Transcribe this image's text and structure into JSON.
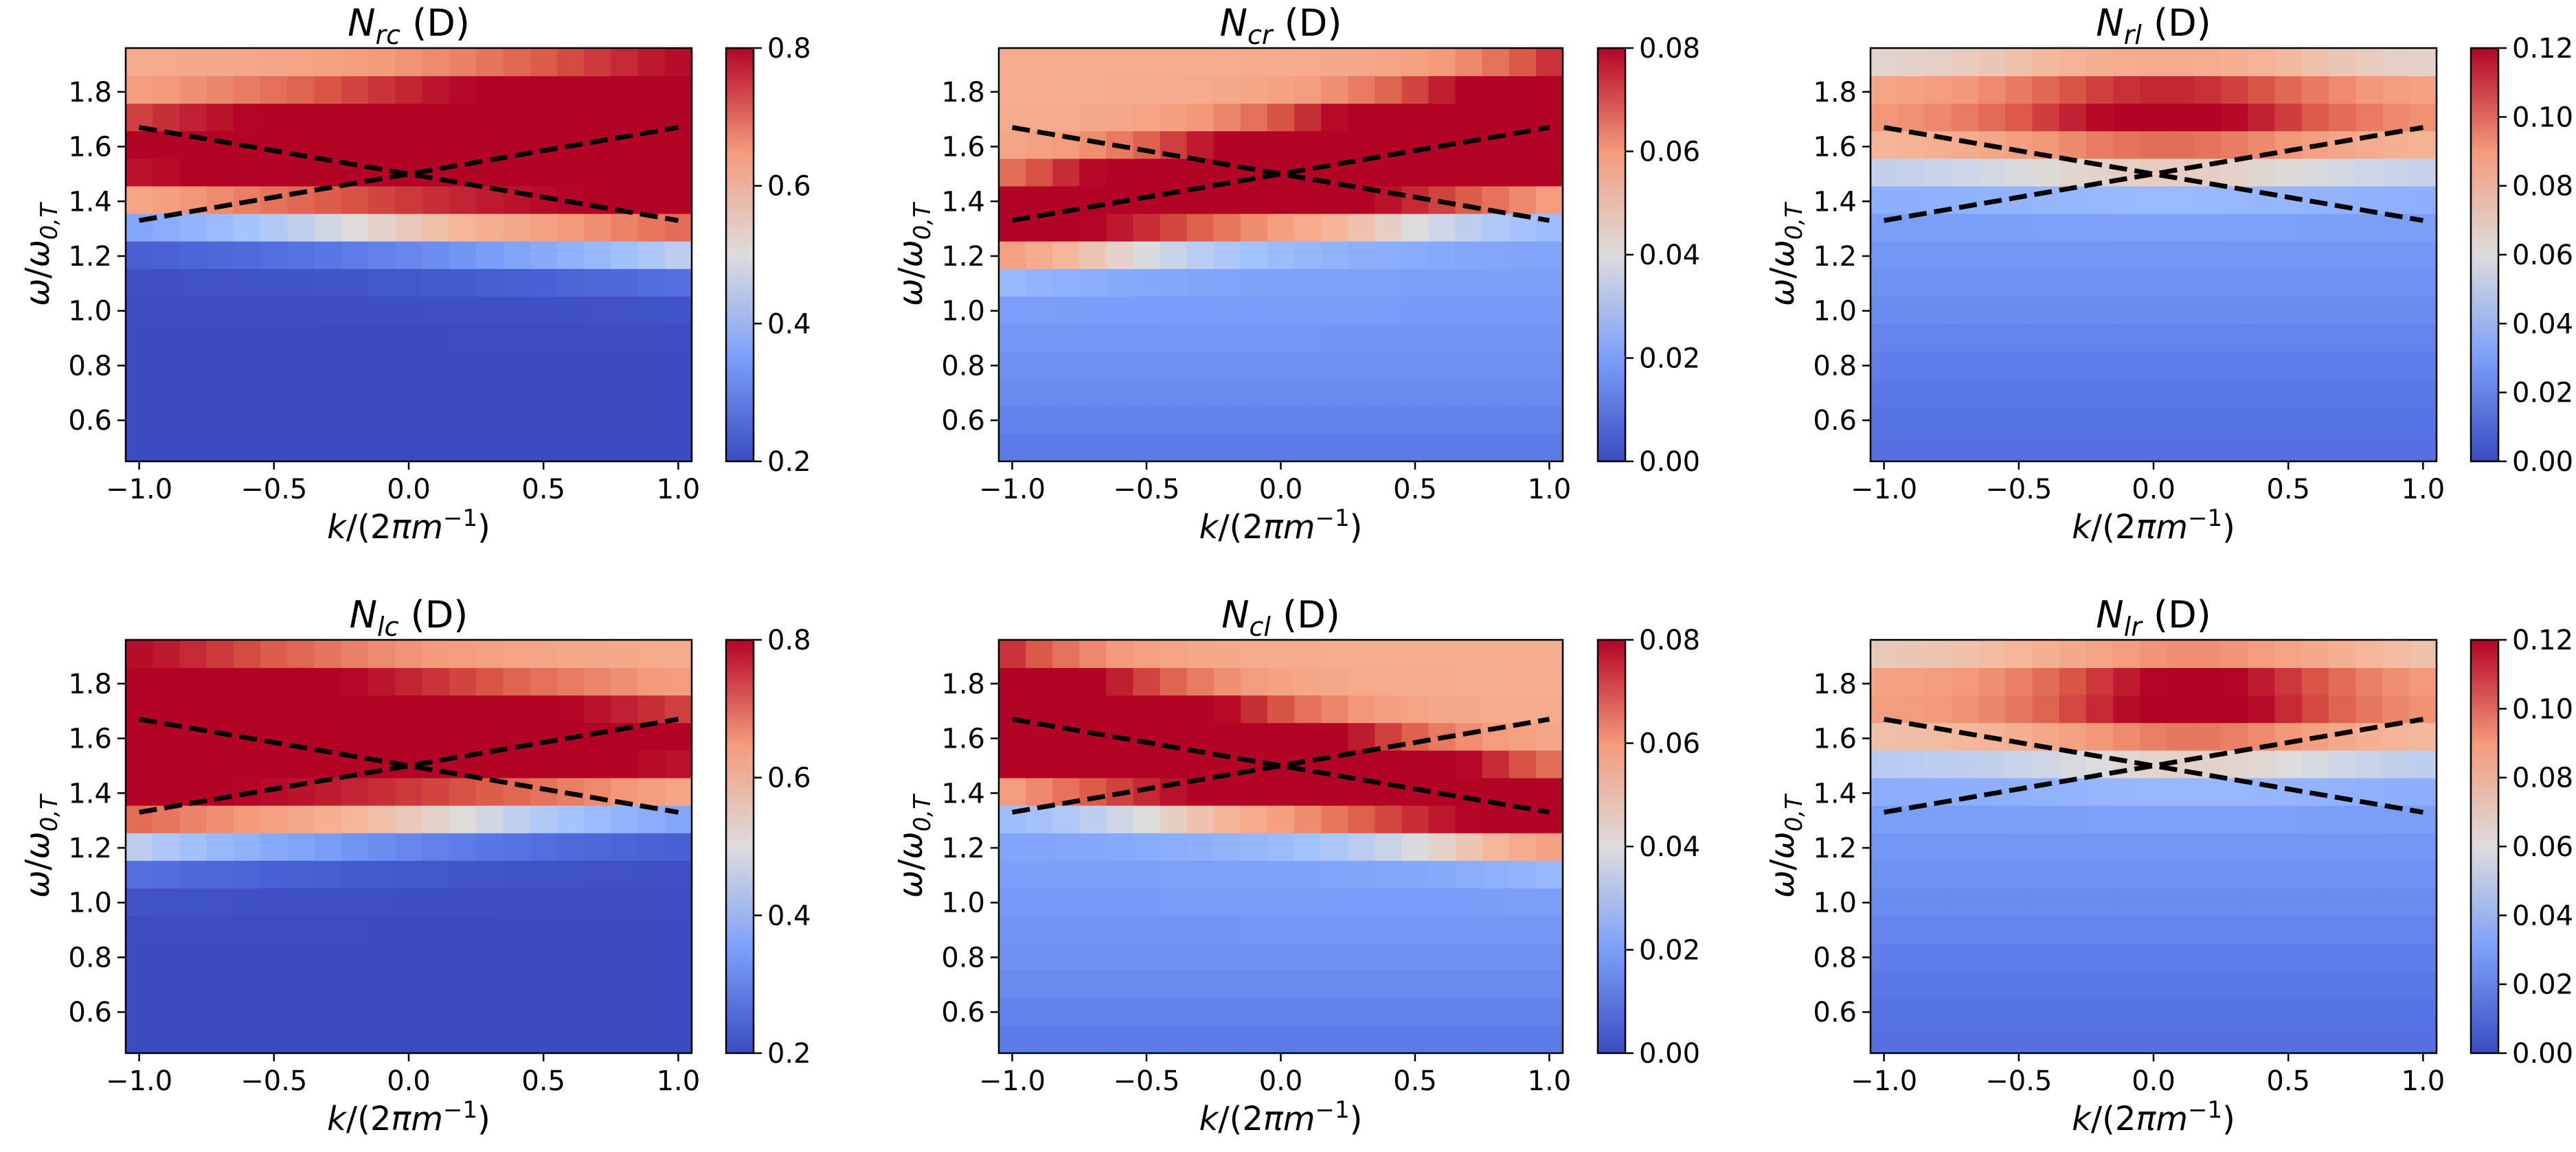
{
  "chart_data": [
    {
      "type": "heatmap",
      "title_symbol": "N",
      "title_sub": "rc",
      "title_suffix": " (D)",
      "xlabel": "k/(2πm⁻¹)",
      "ylabel": "ω/ω₀,T",
      "xlim": [
        -1.05,
        1.05
      ],
      "ylim": [
        0.45,
        1.96
      ],
      "xticks": [
        "−1.0",
        "−0.5",
        "0.0",
        "0.5",
        "1.0"
      ],
      "xtick_values": [
        -1.0,
        -0.5,
        0.0,
        0.5,
        1.0
      ],
      "yticks": [
        "0.6",
        "0.8",
        "1.0",
        "1.2",
        "1.4",
        "1.6",
        "1.8"
      ],
      "ytick_values": [
        0.6,
        0.8,
        1.0,
        1.2,
        1.4,
        1.6,
        1.8
      ],
      "colorbar": {
        "colormap": "coolwarm",
        "vmin": 0.2,
        "vmax": 0.8,
        "ticks": [
          "0.2",
          "0.4",
          "0.6",
          "0.8"
        ],
        "tick_values": [
          0.2,
          0.4,
          0.6,
          0.8
        ]
      },
      "grid": {
        "nx": 21,
        "ny": 15,
        "pattern": "rc"
      },
      "dashed_lines": [
        {
          "x": [
            -1.0,
            1.0
          ],
          "y": [
            1.67,
            1.33
          ]
        },
        {
          "x": [
            -1.0,
            1.0
          ],
          "y": [
            1.33,
            1.67
          ]
        }
      ]
    },
    {
      "type": "heatmap",
      "title_symbol": "N",
      "title_sub": "cr",
      "title_suffix": " (D)",
      "xlabel": "k/(2πm⁻¹)",
      "ylabel": "ω/ω₀,T",
      "xlim": [
        -1.05,
        1.05
      ],
      "ylim": [
        0.45,
        1.96
      ],
      "xticks": [
        "−1.0",
        "−0.5",
        "0.0",
        "0.5",
        "1.0"
      ],
      "xtick_values": [
        -1.0,
        -0.5,
        0.0,
        0.5,
        1.0
      ],
      "yticks": [
        "0.6",
        "0.8",
        "1.0",
        "1.2",
        "1.4",
        "1.6",
        "1.8"
      ],
      "ytick_values": [
        0.6,
        0.8,
        1.0,
        1.2,
        1.4,
        1.6,
        1.8
      ],
      "colorbar": {
        "colormap": "coolwarm",
        "vmin": 0.0,
        "vmax": 0.08,
        "ticks": [
          "0.00",
          "0.02",
          "0.04",
          "0.06",
          "0.08"
        ],
        "tick_values": [
          0.0,
          0.02,
          0.04,
          0.06,
          0.08
        ]
      },
      "grid": {
        "nx": 21,
        "ny": 15,
        "pattern": "cr"
      },
      "dashed_lines": [
        {
          "x": [
            -1.0,
            1.0
          ],
          "y": [
            1.67,
            1.33
          ]
        },
        {
          "x": [
            -1.0,
            1.0
          ],
          "y": [
            1.33,
            1.67
          ]
        }
      ]
    },
    {
      "type": "heatmap",
      "title_symbol": "N",
      "title_sub": "rl",
      "title_suffix": " (D)",
      "xlabel": "k/(2πm⁻¹)",
      "ylabel": "ω/ω₀,T",
      "xlim": [
        -1.05,
        1.05
      ],
      "ylim": [
        0.45,
        1.96
      ],
      "xticks": [
        "−1.0",
        "−0.5",
        "0.0",
        "0.5",
        "1.0"
      ],
      "xtick_values": [
        -1.0,
        -0.5,
        0.0,
        0.5,
        1.0
      ],
      "yticks": [
        "0.6",
        "0.8",
        "1.0",
        "1.2",
        "1.4",
        "1.6",
        "1.8"
      ],
      "ytick_values": [
        0.6,
        0.8,
        1.0,
        1.2,
        1.4,
        1.6,
        1.8
      ],
      "colorbar": {
        "colormap": "coolwarm",
        "vmin": 0.0,
        "vmax": 0.12,
        "ticks": [
          "0.00",
          "0.02",
          "0.04",
          "0.06",
          "0.08",
          "0.10",
          "0.12"
        ],
        "tick_values": [
          0.0,
          0.02,
          0.04,
          0.06,
          0.08,
          0.1,
          0.12
        ]
      },
      "grid": {
        "nx": 21,
        "ny": 15,
        "pattern": "rl"
      },
      "dashed_lines": [
        {
          "x": [
            -1.0,
            1.0
          ],
          "y": [
            1.67,
            1.33
          ]
        },
        {
          "x": [
            -1.0,
            1.0
          ],
          "y": [
            1.33,
            1.67
          ]
        }
      ]
    },
    {
      "type": "heatmap",
      "title_symbol": "N",
      "title_sub": "lc",
      "title_suffix": " (D)",
      "xlabel": "k/(2πm⁻¹)",
      "ylabel": "ω/ω₀,T",
      "xlim": [
        -1.05,
        1.05
      ],
      "ylim": [
        0.45,
        1.96
      ],
      "xticks": [
        "−1.0",
        "−0.5",
        "0.0",
        "0.5",
        "1.0"
      ],
      "xtick_values": [
        -1.0,
        -0.5,
        0.0,
        0.5,
        1.0
      ],
      "yticks": [
        "0.6",
        "0.8",
        "1.0",
        "1.2",
        "1.4",
        "1.6",
        "1.8"
      ],
      "ytick_values": [
        0.6,
        0.8,
        1.0,
        1.2,
        1.4,
        1.6,
        1.8
      ],
      "colorbar": {
        "colormap": "coolwarm",
        "vmin": 0.2,
        "vmax": 0.8,
        "ticks": [
          "0.2",
          "0.4",
          "0.6",
          "0.8"
        ],
        "tick_values": [
          0.2,
          0.4,
          0.6,
          0.8
        ]
      },
      "grid": {
        "nx": 21,
        "ny": 15,
        "pattern": "lc"
      },
      "dashed_lines": [
        {
          "x": [
            -1.0,
            1.0
          ],
          "y": [
            1.67,
            1.33
          ]
        },
        {
          "x": [
            -1.0,
            1.0
          ],
          "y": [
            1.33,
            1.67
          ]
        }
      ]
    },
    {
      "type": "heatmap",
      "title_symbol": "N",
      "title_sub": "cl",
      "title_suffix": " (D)",
      "xlabel": "k/(2πm⁻¹)",
      "ylabel": "ω/ω₀,T",
      "xlim": [
        -1.05,
        1.05
      ],
      "ylim": [
        0.45,
        1.96
      ],
      "xticks": [
        "−1.0",
        "−0.5",
        "0.0",
        "0.5",
        "1.0"
      ],
      "xtick_values": [
        -1.0,
        -0.5,
        0.0,
        0.5,
        1.0
      ],
      "yticks": [
        "0.6",
        "0.8",
        "1.0",
        "1.2",
        "1.4",
        "1.6",
        "1.8"
      ],
      "ytick_values": [
        0.6,
        0.8,
        1.0,
        1.2,
        1.4,
        1.6,
        1.8
      ],
      "colorbar": {
        "colormap": "coolwarm",
        "vmin": 0.0,
        "vmax": 0.08,
        "ticks": [
          "0.00",
          "0.02",
          "0.04",
          "0.06",
          "0.08"
        ],
        "tick_values": [
          0.0,
          0.02,
          0.04,
          0.06,
          0.08
        ]
      },
      "grid": {
        "nx": 21,
        "ny": 15,
        "pattern": "cl"
      },
      "dashed_lines": [
        {
          "x": [
            -1.0,
            1.0
          ],
          "y": [
            1.67,
            1.33
          ]
        },
        {
          "x": [
            -1.0,
            1.0
          ],
          "y": [
            1.33,
            1.67
          ]
        }
      ]
    },
    {
      "type": "heatmap",
      "title_symbol": "N",
      "title_sub": "lr",
      "title_suffix": " (D)",
      "xlabel": "k/(2πm⁻¹)",
      "ylabel": "ω/ω₀,T",
      "xlim": [
        -1.05,
        1.05
      ],
      "ylim": [
        0.45,
        1.96
      ],
      "xticks": [
        "−1.0",
        "−0.5",
        "0.0",
        "0.5",
        "1.0"
      ],
      "xtick_values": [
        -1.0,
        -0.5,
        0.0,
        0.5,
        1.0
      ],
      "yticks": [
        "0.6",
        "0.8",
        "1.0",
        "1.2",
        "1.4",
        "1.6",
        "1.8"
      ],
      "ytick_values": [
        0.6,
        0.8,
        1.0,
        1.2,
        1.4,
        1.6,
        1.8
      ],
      "colorbar": {
        "colormap": "coolwarm",
        "vmin": 0.0,
        "vmax": 0.12,
        "ticks": [
          "0.00",
          "0.02",
          "0.04",
          "0.06",
          "0.08",
          "0.10",
          "0.12"
        ],
        "tick_values": [
          0.0,
          0.02,
          0.04,
          0.06,
          0.08,
          0.1,
          0.12
        ]
      },
      "grid": {
        "nx": 21,
        "ny": 15,
        "pattern": "lr"
      },
      "dashed_lines": [
        {
          "x": [
            -1.0,
            1.0
          ],
          "y": [
            1.67,
            1.33
          ]
        },
        {
          "x": [
            -1.0,
            1.0
          ],
          "y": [
            1.33,
            1.67
          ]
        }
      ]
    }
  ]
}
